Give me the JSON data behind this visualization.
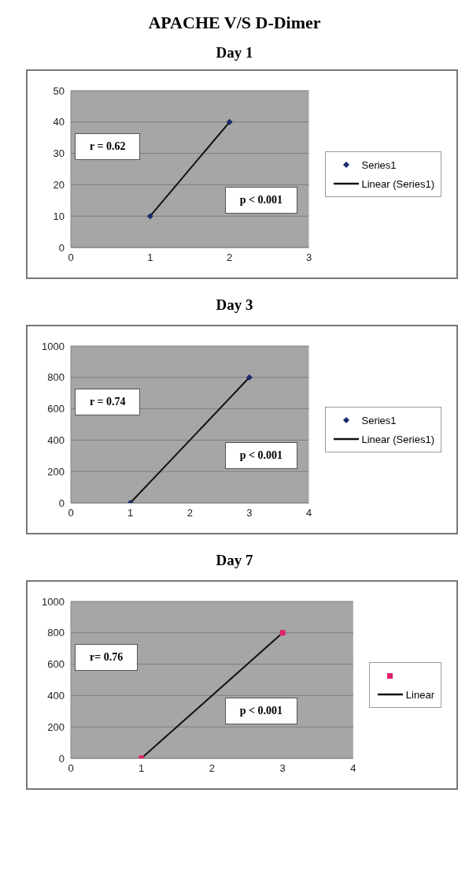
{
  "chart_data": [
    {
      "type": "scatter",
      "title": "APACHE V/S D-Dimer",
      "subtitle": "Day 1",
      "xlim": [
        0,
        3
      ],
      "xticks": [
        0,
        1,
        2,
        3
      ],
      "ylim": [
        0,
        50
      ],
      "yticks": [
        0,
        10,
        20,
        30,
        40,
        50
      ],
      "grid": "y",
      "legend": "right",
      "annotations": [
        "r = 0.62",
        "p < 0.001"
      ],
      "series": [
        {
          "name": "Series1",
          "color": "#1c2a6e",
          "marker": "diamond",
          "x": [
            1,
            2
          ],
          "values": [
            10,
            40
          ]
        },
        {
          "type": "line",
          "name": "Linear (Series1)",
          "color": "#111111",
          "marker": "none",
          "x": [
            1,
            2
          ],
          "values": [
            10,
            40
          ]
        }
      ]
    },
    {
      "type": "scatter",
      "title": "Day 3",
      "xlim": [
        0,
        4
      ],
      "xticks": [
        0,
        1,
        2,
        3,
        4
      ],
      "ylim": [
        0,
        1000
      ],
      "yticks": [
        0,
        200,
        400,
        600,
        800,
        1000
      ],
      "grid": "y",
      "legend": "right",
      "annotations": [
        "r = 0.74",
        "p < 0.001"
      ],
      "series": [
        {
          "name": "Series1",
          "color": "#1c2a6e",
          "marker": "diamond",
          "x": [
            1,
            3
          ],
          "values": [
            0,
            800
          ]
        },
        {
          "type": "line",
          "name": "Linear (Series1)",
          "color": "#111111",
          "marker": "none",
          "x": [
            1,
            3
          ],
          "values": [
            0,
            800
          ]
        }
      ]
    },
    {
      "type": "scatter",
      "title": "Day 7",
      "xlim": [
        0,
        4
      ],
      "xticks": [
        0,
        1,
        2,
        3,
        4
      ],
      "ylim": [
        0,
        1000
      ],
      "yticks": [
        0,
        200,
        400,
        600,
        800,
        1000
      ],
      "grid": "y",
      "legend": "right",
      "annotations": [
        "r= 0.76",
        "p < 0.001"
      ],
      "series": [
        {
          "color": "#e0206a",
          "marker": "square",
          "x": [
            1,
            3
          ],
          "values": [
            0,
            800
          ]
        },
        {
          "type": "line",
          "name": "Linear",
          "color": "#111111",
          "marker": "none",
          "x": [
            1,
            3
          ],
          "values": [
            0,
            800
          ]
        }
      ]
    }
  ]
}
